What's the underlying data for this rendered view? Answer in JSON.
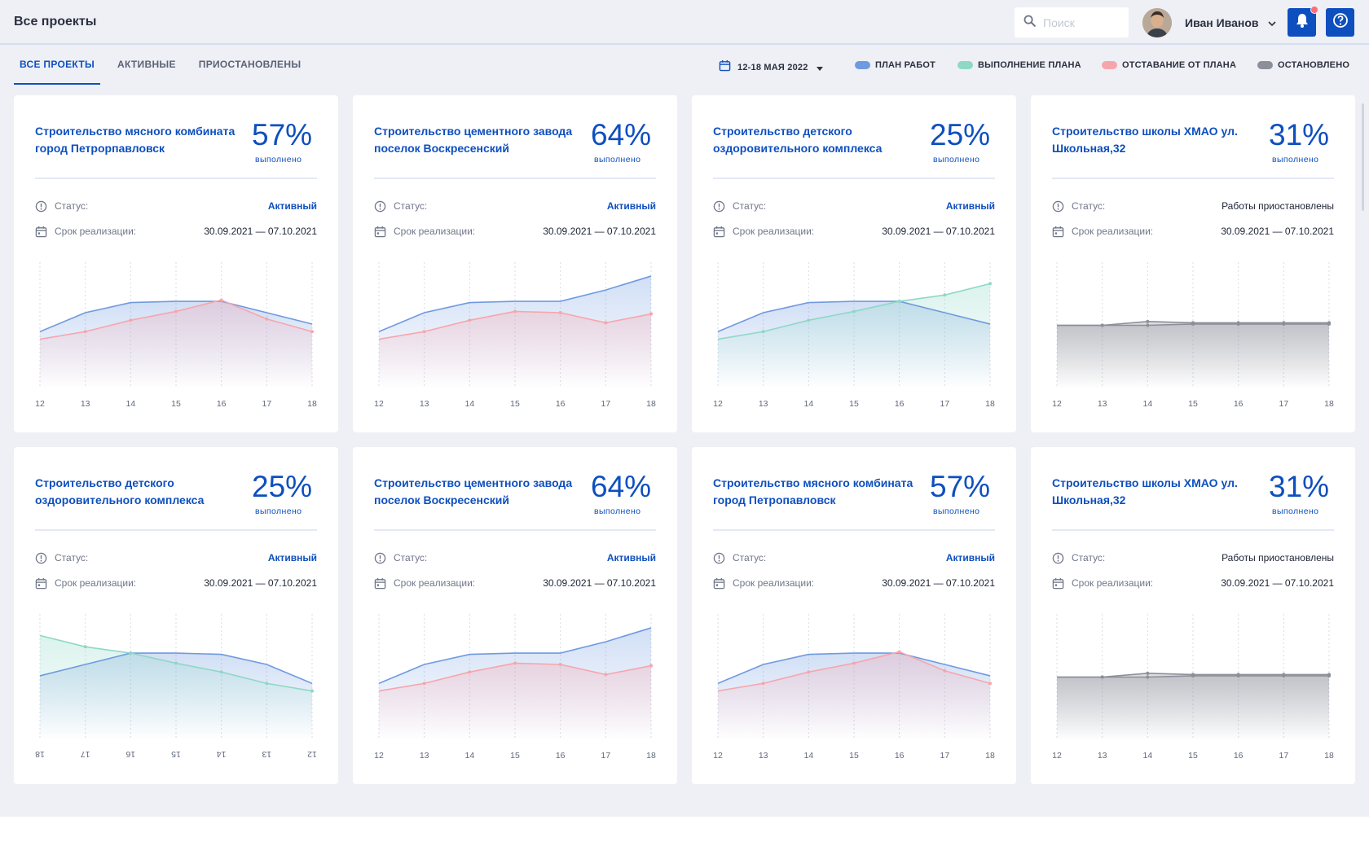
{
  "header": {
    "title": "Все проекты",
    "search_placeholder": "Поиск",
    "user_name": "Иван Иванов"
  },
  "tabs": [
    {
      "label": "ВСЕ ПРОЕКТЫ",
      "active": true
    },
    {
      "label": "АКТИВНЫЕ",
      "active": false
    },
    {
      "label": "ПРИОСТАНОВЛЕНЫ",
      "active": false
    }
  ],
  "period": "12-18 МАЯ 2022",
  "legend": [
    {
      "label": "ПЛАН РАБОТ",
      "color": "#6f9ae0"
    },
    {
      "label": "ВЫПОЛНЕНИЕ ПЛАНА",
      "color": "#8ed8c5"
    },
    {
      "label": "ОТСТАВАНИЕ ОТ ПЛАНА",
      "color": "#f7a5ad"
    },
    {
      "label": "ОСТАНОВЛЕНО",
      "color": "#8b8f99"
    }
  ],
  "colors": {
    "accent": "#0e4fbf",
    "plan": "#6f9ae0",
    "done": "#8ed8c5",
    "lag": "#f7a5ad",
    "stopped": "#8b8f99",
    "background": "#eef0f5"
  },
  "labels": {
    "done": "выполнено",
    "status": "Статус:",
    "term": "Срок реализации:"
  },
  "cards": [
    {
      "title": "Строительство мясного комбината город Петрорпавловск",
      "percent": "57%",
      "status": "Активный",
      "status_active": true,
      "term": "30.09.2021 — 07.10.2021",
      "chart_data": {
        "type": "area",
        "x": [
          "12",
          "13",
          "14",
          "15",
          "16",
          "17",
          "18"
        ],
        "series": [
          {
            "name": "ПЛАН РАБОТ",
            "values": [
              45,
              60,
              68,
              69,
              69,
              60,
              51
            ]
          },
          {
            "name": "ОТСТАВАНИЕ ОТ ПЛАНА",
            "values": [
              39,
              45,
              54,
              61,
              70,
              55,
              45
            ]
          }
        ],
        "ylim": [
          0,
          100
        ]
      }
    },
    {
      "title": "Строительство цементного завода поселок Воскресенский",
      "percent": "64%",
      "status": "Активный",
      "status_active": true,
      "term": "30.09.2021 — 07.10.2021",
      "chart_data": {
        "type": "area",
        "x": [
          "12",
          "13",
          "14",
          "15",
          "16",
          "17",
          "18"
        ],
        "series": [
          {
            "name": "ПЛАН РАБОТ",
            "values": [
              45,
              60,
              68,
              69,
              69,
              78,
              89
            ]
          },
          {
            "name": "ОТСТАВАНИЕ ОТ ПЛАНА",
            "values": [
              39,
              45,
              54,
              61,
              60,
              52,
              59
            ]
          }
        ],
        "ylim": [
          0,
          100
        ]
      }
    },
    {
      "title": "Строительство детского оздоровительного комплекса",
      "percent": "25%",
      "status": "Активный",
      "status_active": true,
      "term": "30.09.2021 — 07.10.2021",
      "chart_data": {
        "type": "area",
        "x": [
          "12",
          "13",
          "14",
          "15",
          "16",
          "17",
          "18"
        ],
        "series": [
          {
            "name": "ПЛАН РАБОТ",
            "values": [
              45,
              60,
              68,
              69,
              69,
              60,
              51
            ]
          },
          {
            "name": "ВЫПОЛНЕНИЕ ПЛАНА",
            "values": [
              39,
              45,
              54,
              61,
              69,
              74,
              83
            ]
          }
        ],
        "ylim": [
          0,
          100
        ]
      }
    },
    {
      "title": "Строительство школы ХМАО ул. Школьная,32",
      "percent": "31%",
      "status": "Работы приостановлены",
      "status_active": false,
      "term": "30.09.2021 — 07.10.2021",
      "chart_data": {
        "type": "area",
        "x": [
          "12",
          "13",
          "14",
          "15",
          "16",
          "17",
          "18"
        ],
        "series": [
          {
            "name": "ОСТАНОВЛЕНО",
            "values": [
              50,
              50,
              53,
              52,
              52,
              52,
              52
            ]
          },
          {
            "name": "ОСТАНОВЛЕНО",
            "values": [
              50,
              50,
              50,
              51,
              51,
              51,
              51
            ]
          }
        ],
        "ylim": [
          0,
          100
        ]
      }
    },
    {
      "title": "Строительство детского оздоровительного комплекса",
      "percent": "25%",
      "status": "Активный",
      "status_active": true,
      "term": "30.09.2021 — 07.10.2021",
      "chart_data": {
        "type": "area",
        "x": [
          "18",
          "17",
          "16",
          "15",
          "14",
          "13",
          "12"
        ],
        "x_labels_rotated": true,
        "series": [
          {
            "name": "ПЛАН РАБОТ",
            "values": [
              51,
              60,
              69,
              69,
              68,
              60,
              45
            ]
          },
          {
            "name": "ВЫПОЛНЕНИЕ ПЛАНА",
            "values": [
              83,
              74,
              69,
              61,
              54,
              45,
              39
            ]
          }
        ],
        "ylim": [
          0,
          100
        ]
      }
    },
    {
      "title": "Строительство цементного завода поселок Воскресенский",
      "percent": "64%",
      "status": "Активный",
      "status_active": true,
      "term": "30.09.2021 — 07.10.2021",
      "chart_data": {
        "type": "area",
        "x": [
          "12",
          "13",
          "14",
          "15",
          "16",
          "17",
          "18"
        ],
        "series": [
          {
            "name": "ПЛАН РАБОТ",
            "values": [
              45,
              60,
              68,
              69,
              69,
              78,
              89
            ]
          },
          {
            "name": "ОТСТАВАНИЕ ОТ ПЛАНА",
            "values": [
              39,
              45,
              54,
              61,
              60,
              52,
              59
            ]
          }
        ],
        "ylim": [
          0,
          100
        ]
      }
    },
    {
      "title": "Строительство мясного комбината город Петропавловск",
      "percent": "57%",
      "status": "Активный",
      "status_active": true,
      "term": "30.09.2021 — 07.10.2021",
      "chart_data": {
        "type": "area",
        "x": [
          "12",
          "13",
          "14",
          "15",
          "16",
          "17",
          "18"
        ],
        "series": [
          {
            "name": "ПЛАН РАБОТ",
            "values": [
              45,
              60,
              68,
              69,
              69,
              60,
              51
            ]
          },
          {
            "name": "ОТСТАВАНИЕ ОТ ПЛАНА",
            "values": [
              39,
              45,
              54,
              61,
              70,
              55,
              45
            ]
          }
        ],
        "ylim": [
          0,
          100
        ]
      }
    },
    {
      "title": "Строительство школы ХМАО ул. Школьная,32",
      "percent": "31%",
      "status": "Работы приостановлены",
      "status_active": false,
      "term": "30.09.2021 — 07.10.2021",
      "chart_data": {
        "type": "area",
        "x": [
          "12",
          "13",
          "14",
          "15",
          "16",
          "17",
          "18"
        ],
        "series": [
          {
            "name": "ОСТАНОВЛЕНО",
            "values": [
              50,
              50,
              53,
              52,
              52,
              52,
              52
            ]
          },
          {
            "name": "ОСТАНОВЛЕНО",
            "values": [
              50,
              50,
              50,
              51,
              51,
              51,
              51
            ]
          }
        ],
        "ylim": [
          0,
          100
        ]
      }
    }
  ]
}
